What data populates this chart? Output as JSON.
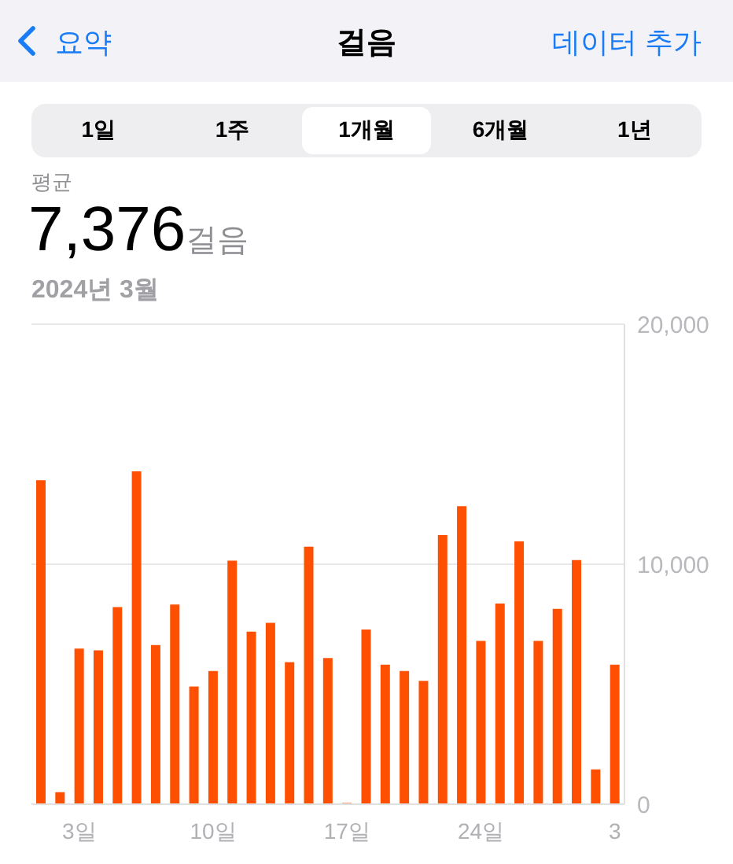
{
  "chart_data": {
    "type": "bar",
    "title": "걸음",
    "annotations": [
      "요약",
      "데이터 추가",
      "1일",
      "1주",
      "1개월",
      "6개월",
      "1년",
      "평균",
      "7,376",
      "걸음",
      "2024년 3월"
    ],
    "categories": [
      null,
      null,
      "3일",
      null,
      null,
      null,
      null,
      null,
      null,
      "10일",
      null,
      null,
      null,
      null,
      null,
      null,
      "17일",
      null,
      null,
      null,
      null,
      null,
      null,
      "24일",
      null,
      null,
      null,
      null,
      null,
      null,
      "3"
    ],
    "values": [
      13500,
      500,
      6480,
      6410,
      8210,
      13870,
      6630,
      8320,
      4900,
      5550,
      10150,
      7190,
      7560,
      5920,
      10730,
      6090,
      50,
      7280,
      5810,
      5550,
      5140,
      11210,
      12420,
      6800,
      8360,
      10950,
      6800,
      8140,
      10170,
      1450,
      5810
    ],
    "color": "#ff4f00",
    "ylim": [
      0,
      20000
    ],
    "yticks": [
      {
        "value": 0,
        "label": "0"
      },
      {
        "value": 10000,
        "label": "10,000"
      },
      {
        "value": 20000,
        "label": "20,000"
      }
    ],
    "grid": true,
    "legend": false
  }
}
